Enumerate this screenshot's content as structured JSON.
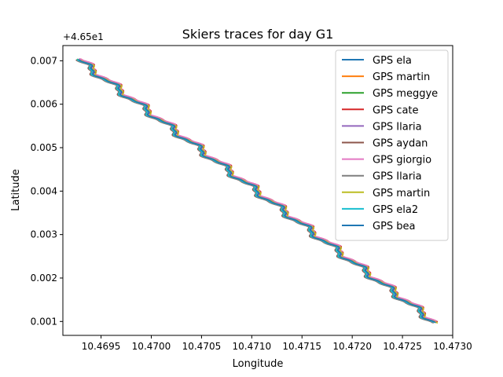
{
  "chart_data": {
    "type": "line",
    "title": "Skiers traces for day G1",
    "xlabel": "Longitude",
    "ylabel": "Latitude",
    "y_offset_text": "+4.65e1",
    "xlim": [
      10.46912,
      10.473
    ],
    "ylim": [
      0.00068,
      0.00735
    ],
    "x_ticks": [
      10.4695,
      10.47,
      10.4705,
      10.471,
      10.4715,
      10.472,
      10.4725,
      10.473
    ],
    "x_tick_labels": [
      "10.4695",
      "10.4700",
      "10.4705",
      "10.4710",
      "10.4715",
      "10.4720",
      "10.4725",
      "10.4730"
    ],
    "y_ticks": [
      0.001,
      0.002,
      0.003,
      0.004,
      0.005,
      0.006,
      0.007
    ],
    "y_tick_labels": [
      "0.001",
      "0.002",
      "0.003",
      "0.004",
      "0.005",
      "0.006",
      "0.007"
    ],
    "legend_position": "top-right",
    "grid": false,
    "series": [
      {
        "name": "GPS ela",
        "color": "#1f77b4",
        "dx": 0.0,
        "dy": 0.0
      },
      {
        "name": "GPS martin",
        "color": "#ff7f0e",
        "dx": 2e-05,
        "dy": -1e-05
      },
      {
        "name": "GPS meggye",
        "color": "#2ca02c",
        "dx": -1e-05,
        "dy": 1e-05
      },
      {
        "name": "GPS cate",
        "color": "#d62728",
        "dx": 3e-05,
        "dy": 1e-05
      },
      {
        "name": "GPS Ilaria",
        "color": "#9467bd",
        "dx": 1e-05,
        "dy": 2e-05
      },
      {
        "name": "GPS aydan",
        "color": "#8c564b",
        "dx": -2e-05,
        "dy": -1e-05
      },
      {
        "name": "GPS giorgio",
        "color": "#e377c2",
        "dx": 2e-05,
        "dy": 2e-05
      },
      {
        "name": "GPS Ilaria",
        "color": "#7f7f7f",
        "dx": -1e-05,
        "dy": -2e-05
      },
      {
        "name": "GPS martin",
        "color": "#bcbd22",
        "dx": 3e-05,
        "dy": -2e-05
      },
      {
        "name": "GPS ela2",
        "color": "#17becf",
        "dx": -1e-05,
        "dy": 0.0
      },
      {
        "name": "GPS bea",
        "color": "#1f77b4",
        "dx": 1e-05,
        "dy": -1e-05
      }
    ],
    "track": {
      "x_start": 10.46927,
      "x_end": 10.47282,
      "y_start": 0.00703,
      "y_end": 0.00098,
      "wiggle_amplitude_x": 6e-05,
      "wiggle_cycles": 13
    }
  }
}
